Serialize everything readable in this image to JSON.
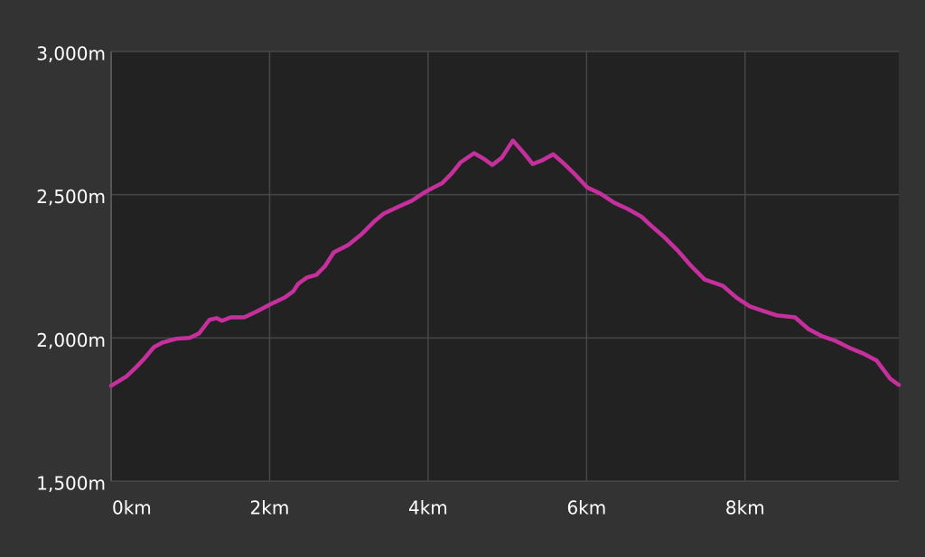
{
  "chart_data": {
    "type": "line",
    "color": "#c6309d",
    "grid": true,
    "x": [
      0,
      0.19,
      0.31,
      0.42,
      0.54,
      0.65,
      0.82,
      0.99,
      1.11,
      1.24,
      1.33,
      1.4,
      1.51,
      1.68,
      1.85,
      2.02,
      2.19,
      2.3,
      2.36,
      2.47,
      2.59,
      2.7,
      2.81,
      2.99,
      3.16,
      3.33,
      3.44,
      3.61,
      3.79,
      3.96,
      4.07,
      4.18,
      4.3,
      4.41,
      4.58,
      4.7,
      4.81,
      4.93,
      5.07,
      5.21,
      5.32,
      5.44,
      5.58,
      5.72,
      5.84,
      6.01,
      6.18,
      6.35,
      6.52,
      6.69,
      6.81,
      6.98,
      7.15,
      7.32,
      7.49,
      7.72,
      7.89,
      8.06,
      8.23,
      8.4,
      8.63,
      8.8,
      8.97,
      9.14,
      9.32,
      9.49,
      9.66,
      9.83,
      9.94
    ],
    "values": [
      1833,
      1865,
      1896,
      1928,
      1968,
      1984,
      1997,
      2000,
      2016,
      2063,
      2069,
      2060,
      2072,
      2072,
      2094,
      2119,
      2141,
      2163,
      2189,
      2211,
      2220,
      2251,
      2299,
      2324,
      2362,
      2409,
      2434,
      2456,
      2478,
      2509,
      2525,
      2541,
      2575,
      2613,
      2645,
      2626,
      2604,
      2629,
      2689,
      2645,
      2607,
      2620,
      2641,
      2607,
      2575,
      2525,
      2503,
      2472,
      2450,
      2424,
      2393,
      2352,
      2305,
      2251,
      2204,
      2182,
      2141,
      2110,
      2094,
      2079,
      2072,
      2031,
      2006,
      1990,
      1965,
      1946,
      1921,
      1858,
      1836
    ],
    "xlim": [
      0,
      9.94
    ],
    "xticks": [
      {
        "value": 0,
        "label": "0km"
      },
      {
        "value": 2,
        "label": "2km"
      },
      {
        "value": 4,
        "label": "4km"
      },
      {
        "value": 6,
        "label": "6km"
      },
      {
        "value": 8,
        "label": "8km"
      }
    ],
    "ylim": [
      1500,
      3000
    ],
    "yticks": [
      {
        "value": 1500,
        "label": "1,500m"
      },
      {
        "value": 2000,
        "label": "2,000m"
      },
      {
        "value": 2500,
        "label": "2,500m"
      },
      {
        "value": 3000,
        "label": "3,000m"
      }
    ]
  }
}
